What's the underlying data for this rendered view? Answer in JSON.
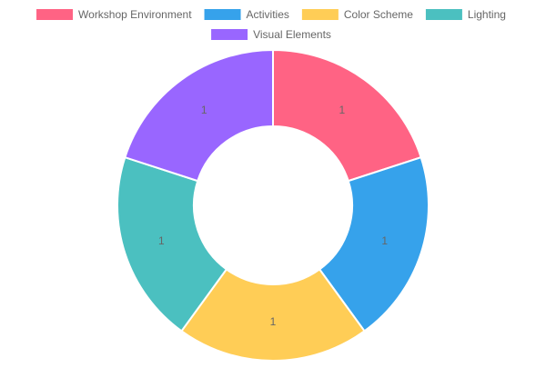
{
  "chart_data": {
    "type": "doughnut",
    "categories": [
      "Workshop Environment",
      "Activities",
      "Color Scheme",
      "Lighting",
      "Visual Elements"
    ],
    "values": [
      1,
      1,
      1,
      1,
      1
    ],
    "colors": [
      "#ff6384",
      "#36a2eb",
      "#ffcd56",
      "#4bc0c0",
      "#9966ff"
    ],
    "legend": "top"
  }
}
